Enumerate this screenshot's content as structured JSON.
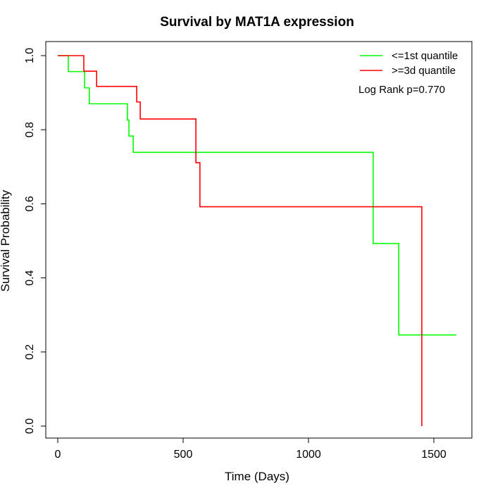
{
  "chart_data": {
    "type": "line",
    "subtype": "kaplan-meier step",
    "title": "Survival by MAT1A expression",
    "xlabel": "Time (Days)",
    "ylabel": "Survival Probability",
    "xlim": [
      -45,
      1650
    ],
    "ylim": [
      0.0,
      1.0
    ],
    "x_ticks": [
      0,
      500,
      1000,
      1500
    ],
    "x_tick_labels": [
      "0",
      "500",
      "1000",
      "1500"
    ],
    "y_ticks": [
      0.0,
      0.2,
      0.4,
      0.6,
      0.8,
      1.0
    ],
    "y_tick_labels": [
      "0.0",
      "0.2",
      "0.4",
      "0.6",
      "0.8",
      "1.0"
    ],
    "grid": false,
    "legend_position": "top-right",
    "annotation": "Log Rank p=0.770",
    "series": [
      {
        "name": "<=1st quantile",
        "color": "#00ff00",
        "times": [
          0,
          42,
          107,
          126,
          278,
          284,
          301,
          1258,
          1360,
          1590
        ],
        "survival": [
          1.0,
          0.957,
          0.913,
          0.87,
          0.826,
          0.783,
          0.739,
          0.493,
          0.246,
          0.246
        ]
      },
      {
        "name": ">=3d quantile",
        "color": "#ff0000",
        "times": [
          0,
          104,
          155,
          315,
          329,
          551,
          567,
          1452
        ],
        "survival": [
          1.0,
          0.958,
          0.917,
          0.875,
          0.829,
          0.711,
          0.592,
          0.0
        ]
      }
    ]
  }
}
